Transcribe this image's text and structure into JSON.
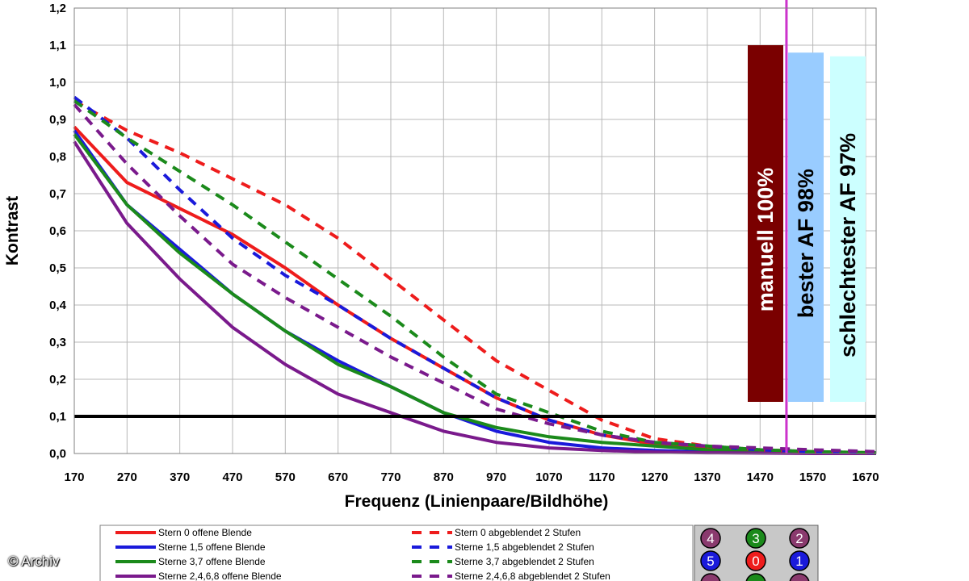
{
  "chart_data": {
    "type": "line",
    "title": "",
    "xlabel": "Frequenz (Linienpaare/Bildhöhe)",
    "ylabel": "Kontrast",
    "xlim": [
      170,
      1690
    ],
    "ylim": [
      0,
      1.2
    ],
    "x_ticks": [
      170,
      270,
      370,
      470,
      570,
      670,
      770,
      870,
      970,
      1070,
      1170,
      1270,
      1370,
      1470,
      1570,
      1670
    ],
    "y_ticks": [
      0.0,
      0.1,
      0.2,
      0.3,
      0.4,
      0.5,
      0.6,
      0.7,
      0.8,
      0.9,
      1.0,
      1.1,
      1.2
    ],
    "y_tick_labels": [
      "0,0",
      "0,1",
      "0,2",
      "0,3",
      "0,4",
      "0,5",
      "0,6",
      "0,7",
      "0,8",
      "0,9",
      "1,0",
      "1,1",
      "1,2"
    ],
    "grid": true,
    "threshold": {
      "y": 0.1,
      "color": "#000000"
    },
    "marker_line": {
      "x": 1520,
      "color": "#cc33cc"
    },
    "x": [
      170,
      270,
      370,
      470,
      570,
      670,
      770,
      870,
      970,
      1070,
      1170,
      1270,
      1370,
      1470,
      1570,
      1690
    ],
    "series": [
      {
        "name": "Stern 0 offene Blende",
        "color": "#ee1c1c",
        "dash": false,
        "values": [
          0.88,
          0.73,
          0.66,
          0.59,
          0.5,
          0.4,
          0.31,
          0.23,
          0.15,
          0.09,
          0.05,
          0.025,
          0.012,
          0.006,
          0.003,
          0.001
        ]
      },
      {
        "name": "Sterne 1,5 offene Blende",
        "color": "#1a1adb",
        "dash": false,
        "values": [
          0.87,
          0.67,
          0.55,
          0.43,
          0.33,
          0.25,
          0.18,
          0.11,
          0.06,
          0.03,
          0.015,
          0.008,
          0.004,
          0.002,
          0.001,
          0.0
        ]
      },
      {
        "name": "Sterne 3,7 offene Blende",
        "color": "#1b8a1b",
        "dash": false,
        "values": [
          0.86,
          0.67,
          0.54,
          0.43,
          0.33,
          0.24,
          0.18,
          0.11,
          0.07,
          0.045,
          0.03,
          0.02,
          0.01,
          0.005,
          0.003,
          0.001
        ]
      },
      {
        "name": "Sterne 2,4,6,8 offene Blende",
        "color": "#7a1a8c",
        "dash": false,
        "values": [
          0.84,
          0.62,
          0.47,
          0.34,
          0.24,
          0.16,
          0.11,
          0.06,
          0.03,
          0.015,
          0.008,
          0.004,
          0.002,
          0.001,
          0.0,
          0.0
        ]
      },
      {
        "name": "Stern 0 abgeblendet 2 Stufen",
        "color": "#ee1c1c",
        "dash": true,
        "values": [
          0.95,
          0.87,
          0.81,
          0.74,
          0.67,
          0.58,
          0.47,
          0.36,
          0.25,
          0.17,
          0.09,
          0.04,
          0.02,
          0.01,
          0.005,
          0.002
        ]
      },
      {
        "name": "Sterne 1,5 abgeblendet 2 Stufen",
        "color": "#1a1adb",
        "dash": true,
        "values": [
          0.96,
          0.85,
          0.71,
          0.58,
          0.48,
          0.4,
          0.31,
          0.23,
          0.15,
          0.09,
          0.05,
          0.03,
          0.02,
          0.01,
          0.005,
          0.002
        ]
      },
      {
        "name": "Sterne 3,7 abgeblendet 2 Stufen",
        "color": "#1b8a1b",
        "dash": true,
        "values": [
          0.95,
          0.85,
          0.76,
          0.67,
          0.57,
          0.47,
          0.37,
          0.26,
          0.16,
          0.11,
          0.06,
          0.03,
          0.02,
          0.01,
          0.005,
          0.002
        ]
      },
      {
        "name": "Sterne 2,4,6,8 abgeblendet 2 Stufen",
        "color": "#7a1a8c",
        "dash": true,
        "values": [
          0.94,
          0.78,
          0.64,
          0.51,
          0.42,
          0.34,
          0.26,
          0.19,
          0.12,
          0.08,
          0.05,
          0.03,
          0.02,
          0.015,
          0.01,
          0.005
        ]
      }
    ],
    "bars": [
      {
        "label": "manuell 100%",
        "value": 1.1,
        "color": "#7a0000",
        "text_color": "#ffffff"
      },
      {
        "label": "bester AF 98%",
        "value": 1.08,
        "color": "#99ccff",
        "text_color": "#000000"
      },
      {
        "label": "schlechtester AF 97%",
        "value": 1.07,
        "color": "#ccffff",
        "text_color": "#000000"
      }
    ]
  },
  "legend": {
    "items": [
      {
        "label": "Stern 0 offene Blende"
      },
      {
        "label": "Sterne 1,5 offene Blende"
      },
      {
        "label": "Sterne 3,7 offene Blende"
      },
      {
        "label": "Sterne 2,4,6,8 offene Blende"
      },
      {
        "label": "Stern 0 abgeblendet 2 Stufen"
      },
      {
        "label": "Sterne 1,5 abgeblendet 2 Stufen"
      },
      {
        "label": "Sterne 3,7 abgeblendet 2 Stufen"
      },
      {
        "label": "Sterne 2,4,6,8 abgeblendet 2 Stufen"
      }
    ]
  },
  "star_key": {
    "badges": [
      {
        "label": "4",
        "color": "#8a3a6e"
      },
      {
        "label": "3",
        "color": "#1b8a1b"
      },
      {
        "label": "2",
        "color": "#8a3a6e"
      },
      {
        "label": "5",
        "color": "#1a1adb"
      },
      {
        "label": "0",
        "color": "#ee1c1c"
      },
      {
        "label": "1",
        "color": "#1a1adb"
      },
      {
        "label": "",
        "color": "#8a3a6e"
      },
      {
        "label": "",
        "color": "#1b8a1b"
      },
      {
        "label": "",
        "color": "#8a3a6e"
      }
    ]
  },
  "credit": {
    "text": "© Archiv"
  }
}
